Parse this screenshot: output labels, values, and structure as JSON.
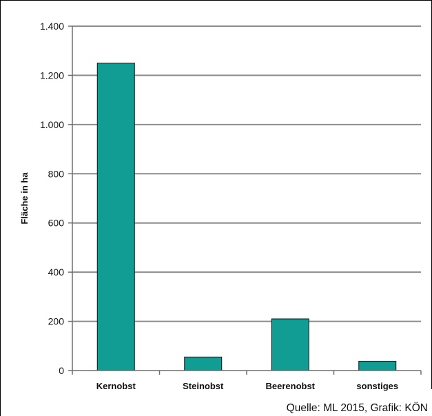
{
  "chart_data": {
    "type": "bar",
    "categories": [
      "Kernobst",
      "Steinobst",
      "Beerenobst",
      "sonstiges"
    ],
    "values": [
      1250,
      55,
      210,
      38
    ],
    "title": "",
    "xlabel": "",
    "ylabel": "Fläche in ha",
    "ylim": [
      0,
      1400
    ],
    "yticks": [
      0,
      200,
      400,
      600,
      800,
      1000,
      1200,
      1400
    ],
    "ytick_labels": [
      "0",
      "200",
      "400",
      "600",
      "800",
      "1.000",
      "1.200",
      "1.400"
    ],
    "grid": true,
    "legend": "none",
    "bar_color": "#119c94"
  },
  "source": "Quelle: ML 2015, Grafik: KÖN"
}
